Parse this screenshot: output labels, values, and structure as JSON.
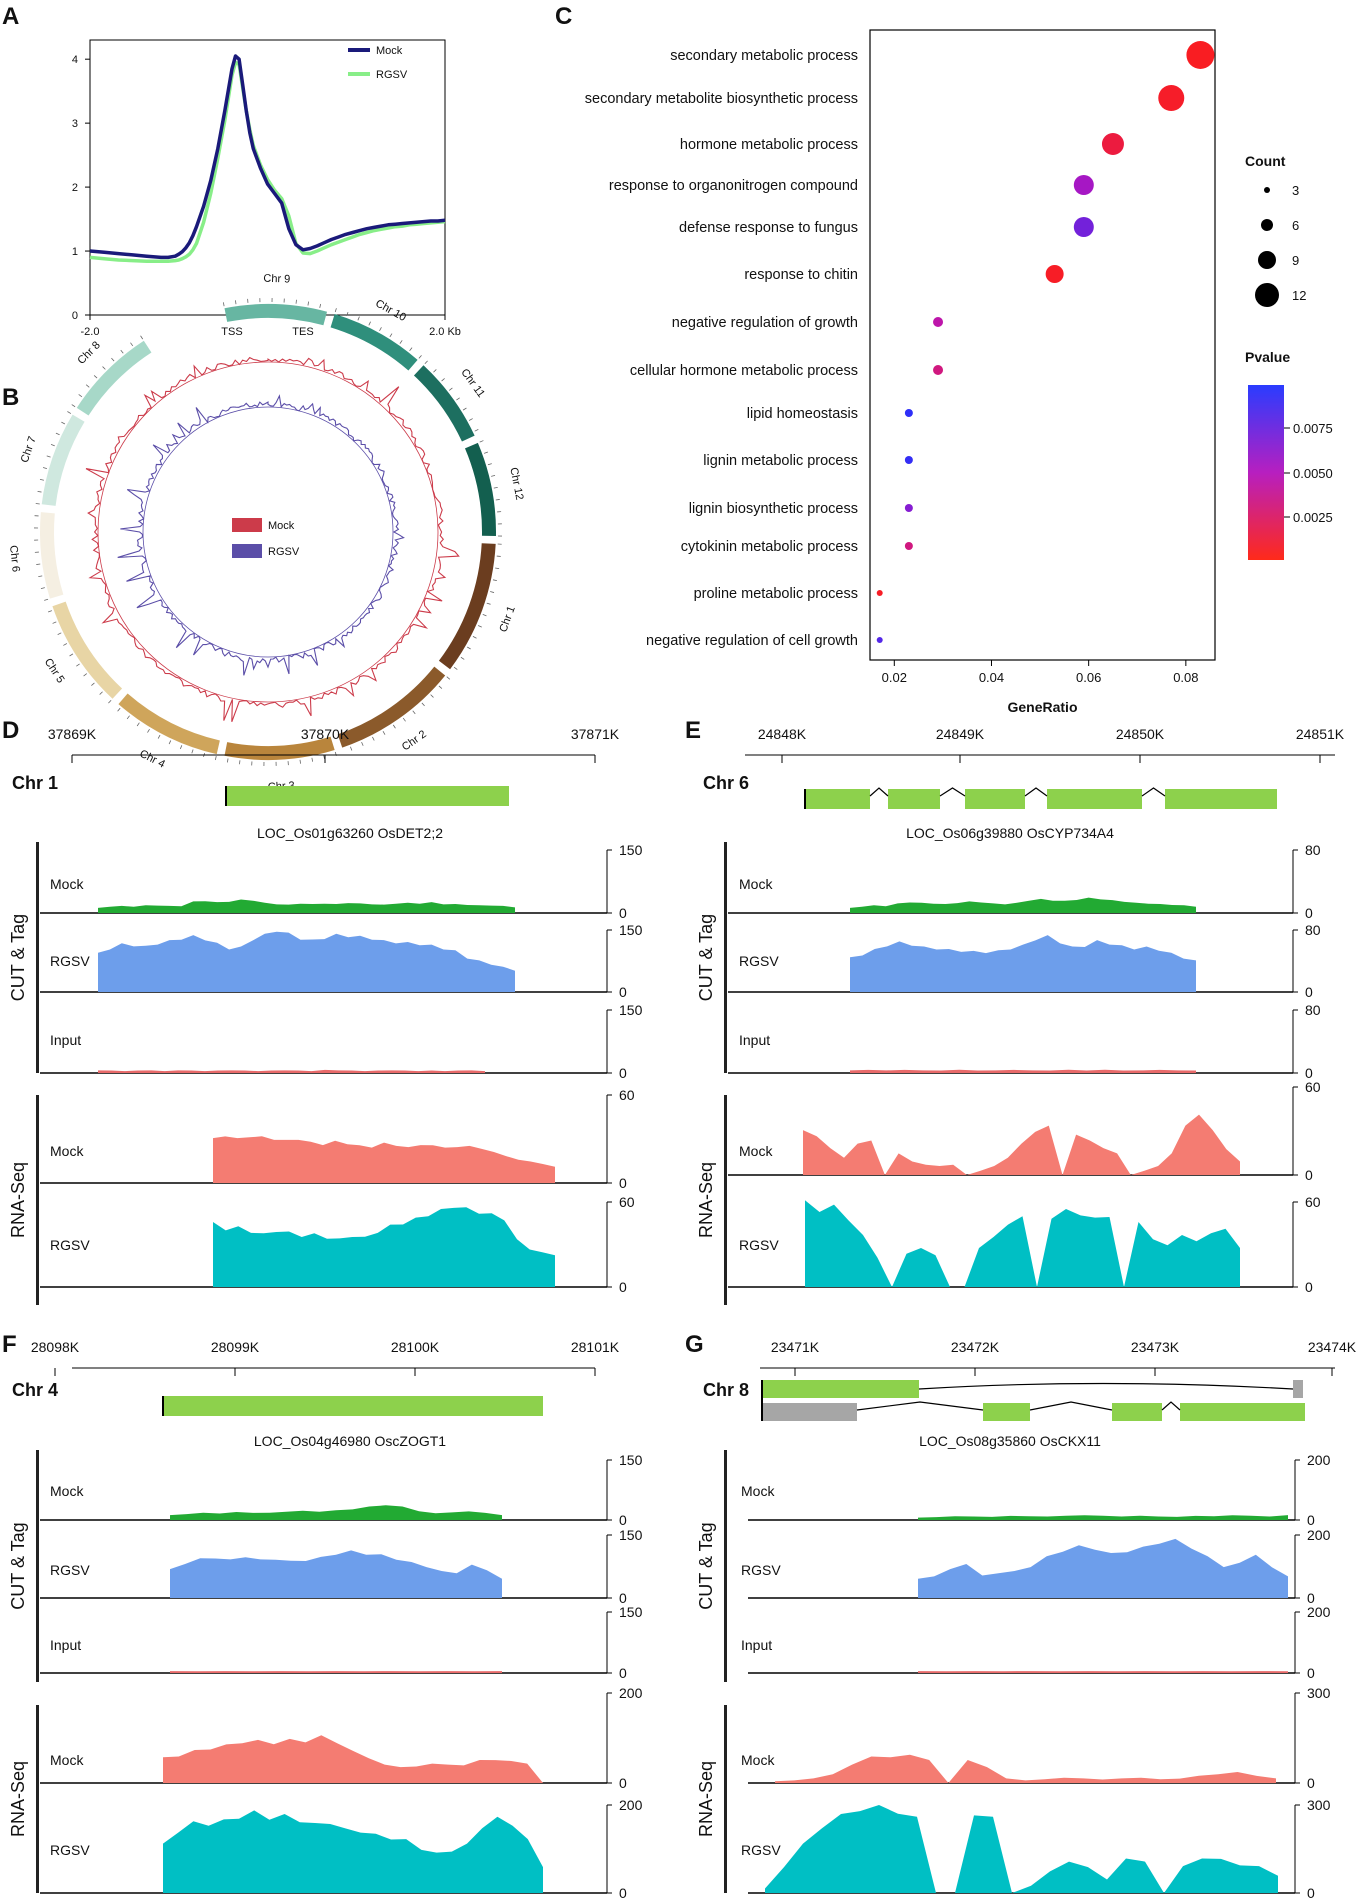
{
  "panels": {
    "A": "A",
    "B": "B",
    "C": "C",
    "D": "D",
    "E": "E",
    "F": "F",
    "G": "G"
  },
  "colors": {
    "mock_line": "#1a1a7a",
    "rgsv_line": "#88ee88",
    "ct_mock": "#22aa33",
    "ct_rgsv": "#6d9eeb",
    "ct_input": "#e86a6a",
    "rna_mock": "#f47c72",
    "rna_rgsv": "#00bfc4",
    "exon": "#8dd14c",
    "utr": "#a6a6a6",
    "circos_mock": "#cc3b4a",
    "circos_rgsv": "#5b4ea8"
  },
  "chart_data": [
    {
      "id": "A",
      "type": "line",
      "title": "",
      "xlabel": "",
      "ylabel": "",
      "x_ticks": [
        "-2.0",
        "TSS",
        "TES",
        "2.0 Kb"
      ],
      "y_ticks": [
        "0",
        "1",
        "2",
        "3",
        "4"
      ],
      "ylim": [
        0,
        4.3
      ],
      "legend": [
        "Mock",
        "RGSV"
      ],
      "series": [
        {
          "name": "Mock",
          "x": [
            0,
            4,
            8,
            12,
            16,
            20,
            22,
            24,
            25,
            26,
            27,
            28,
            29,
            30,
            32,
            34,
            36,
            38,
            40,
            41,
            42,
            43,
            44,
            45,
            46,
            48,
            50,
            52,
            54,
            56,
            58,
            60,
            62,
            64,
            66,
            68,
            70,
            72,
            74,
            76,
            78,
            80,
            82,
            84,
            86,
            88,
            90,
            92,
            94,
            96,
            98,
            100
          ],
          "values": [
            1.0,
            0.98,
            0.96,
            0.94,
            0.92,
            0.9,
            0.9,
            0.92,
            0.95,
            0.99,
            1.05,
            1.13,
            1.24,
            1.38,
            1.7,
            2.1,
            2.6,
            3.2,
            3.85,
            4.05,
            4.0,
            3.6,
            3.2,
            2.85,
            2.6,
            2.3,
            2.05,
            1.9,
            1.75,
            1.35,
            1.1,
            1.02,
            1.04,
            1.08,
            1.13,
            1.18,
            1.22,
            1.26,
            1.29,
            1.32,
            1.35,
            1.37,
            1.39,
            1.41,
            1.42,
            1.43,
            1.44,
            1.45,
            1.46,
            1.47,
            1.47,
            1.48
          ]
        },
        {
          "name": "RGSV",
          "x": [
            0,
            4,
            8,
            12,
            16,
            20,
            22,
            24,
            25,
            26,
            27,
            28,
            29,
            30,
            32,
            34,
            36,
            38,
            40,
            41,
            42,
            43,
            44,
            45,
            46,
            48,
            50,
            52,
            54,
            56,
            58,
            60,
            62,
            64,
            66,
            68,
            70,
            72,
            74,
            76,
            78,
            80,
            82,
            84,
            86,
            88,
            90,
            92,
            94,
            96,
            98,
            100
          ],
          "values": [
            0.9,
            0.88,
            0.86,
            0.85,
            0.84,
            0.84,
            0.84,
            0.85,
            0.86,
            0.88,
            0.91,
            0.95,
            1.02,
            1.12,
            1.45,
            1.9,
            2.45,
            3.05,
            3.75,
            3.95,
            3.92,
            3.55,
            3.2,
            2.9,
            2.65,
            2.35,
            2.12,
            1.95,
            1.82,
            1.55,
            1.12,
            0.97,
            0.96,
            1.0,
            1.05,
            1.1,
            1.14,
            1.18,
            1.22,
            1.26,
            1.29,
            1.32,
            1.34,
            1.36,
            1.38,
            1.39,
            1.41,
            1.42,
            1.43,
            1.44,
            1.45,
            1.46
          ]
        }
      ]
    },
    {
      "id": "B",
      "type": "circos",
      "chromosomes": [
        "Chr 1",
        "Chr 2",
        "Chr 3",
        "Chr 4",
        "Chr 5",
        "Chr 6",
        "Chr 7",
        "Chr 8",
        "Chr 9",
        "Chr 10",
        "Chr 11",
        "Chr 12"
      ],
      "legend": [
        "Mock",
        "RGSV"
      ]
    },
    {
      "id": "C",
      "type": "scatter",
      "title": "",
      "xlabel": "GeneRatio",
      "ylabel": "",
      "xlim": [
        0.015,
        0.086
      ],
      "x_ticks": [
        "0.02",
        "0.04",
        "0.06",
        "0.08"
      ],
      "categories": [
        "secondary metabolic process",
        "secondary metabolite biosynthetic process",
        "hormone metabolic process",
        "response to organonitrogen compound",
        "defense response to fungus",
        "response to chitin",
        "negative regulation of growth",
        "cellular hormone metabolic process",
        "lipid homeostasis",
        "lignin metabolic process",
        "lignin biosynthetic process",
        "cytokinin metabolic process",
        "proline metabolic process",
        "negative regulation of cell growth"
      ],
      "gene_ratio": [
        0.083,
        0.077,
        0.065,
        0.059,
        0.059,
        0.053,
        0.029,
        0.029,
        0.023,
        0.023,
        0.023,
        0.023,
        0.017,
        0.017
      ],
      "count": [
        14,
        13,
        11,
        10,
        10,
        9,
        5,
        5,
        4,
        4,
        4,
        4,
        3,
        3
      ],
      "pvalue": [
        0.0004,
        0.0006,
        0.0012,
        0.0052,
        0.0068,
        0.0005,
        0.0042,
        0.003,
        0.009,
        0.0088,
        0.0062,
        0.003,
        0.0005,
        0.0078
      ],
      "size_legend_title": "Count",
      "size_legend": [
        "3",
        "6",
        "9",
        "12"
      ],
      "color_legend_title": "Pvalue",
      "color_legend": [
        "0.0075",
        "0.0050",
        "0.0025"
      ]
    },
    {
      "id": "D",
      "type": "area",
      "chrom": "Chr 1",
      "gene": "LOC_Os01g63260  OsDET2;2",
      "coords": [
        "37869K",
        "37870K",
        "37871K"
      ],
      "group_labels": [
        "CUT & Tag",
        "RNA-Seq"
      ],
      "tracks": [
        {
          "label": "Mock",
          "max": "150",
          "zero": "0",
          "values": [
            0.08,
            0.1,
            0.11,
            0.1,
            0.12,
            0.12,
            0.11,
            0.11,
            0.18,
            0.19,
            0.17,
            0.18,
            0.21,
            0.2,
            0.16,
            0.14,
            0.13,
            0.15,
            0.14,
            0.15,
            0.14,
            0.16,
            0.15,
            0.14,
            0.13,
            0.15,
            0.16,
            0.15,
            0.17,
            0.14,
            0.14,
            0.13,
            0.12,
            0.12,
            0.11,
            0.09
          ]
        },
        {
          "label": "RGSV",
          "max": "150",
          "zero": "0",
          "values": [
            0.62,
            0.7,
            0.77,
            0.75,
            0.73,
            0.78,
            0.82,
            0.86,
            0.9,
            0.85,
            0.78,
            0.7,
            0.72,
            0.85,
            0.92,
            0.99,
            0.94,
            0.86,
            0.83,
            0.87,
            0.92,
            0.9,
            0.89,
            0.86,
            0.82,
            0.8,
            0.79,
            0.77,
            0.75,
            0.7,
            0.66,
            0.55,
            0.5,
            0.45,
            0.4,
            0.35
          ]
        },
        {
          "label": "Input",
          "max": "150",
          "zero": "0",
          "values": [
            0.04,
            0.04,
            0.03,
            0.04,
            0.04,
            0.03,
            0.04,
            0.04,
            0.03,
            0.04,
            0.04,
            0.04,
            0.03,
            0.04,
            0.04,
            0.04,
            0.03,
            0.05,
            0.04,
            0.04,
            0.03,
            0.04,
            0.04,
            0.04,
            0.03,
            0.04,
            0.03,
            0.04,
            0.04,
            0.03
          ]
        },
        {
          "label": "Mock",
          "max": "60",
          "zero": "0",
          "values": [
            0.5,
            0.54,
            0.5,
            0.53,
            0.52,
            0.5,
            0.48,
            0.5,
            0.46,
            0.44,
            0.47,
            0.45,
            0.42,
            0.41,
            0.45,
            0.43,
            0.4,
            0.44,
            0.42,
            0.41,
            0.4,
            0.43,
            0.38,
            0.36,
            0.3,
            0.27,
            0.24,
            0.22,
            0.18
          ]
        },
        {
          "label": "RGSV",
          "max": "60",
          "zero": "0",
          "values": [
            0.75,
            0.68,
            0.7,
            0.65,
            0.62,
            0.66,
            0.64,
            0.6,
            0.62,
            0.58,
            0.56,
            0.6,
            0.58,
            0.65,
            0.72,
            0.75,
            0.8,
            0.85,
            0.9,
            0.95,
            0.92,
            0.88,
            0.85,
            0.8,
            0.55,
            0.45,
            0.4,
            0.38
          ]
        }
      ]
    },
    {
      "id": "E",
      "type": "area",
      "chrom": "Chr 6",
      "gene": "LOC_Os06g39880  OsCYP734A4",
      "coords": [
        "24848K",
        "24849K",
        "24850K",
        "24851K"
      ],
      "group_labels": [
        "CUT & Tag",
        "RNA-Seq"
      ],
      "tracks": [
        {
          "label": "Mock",
          "max": "80",
          "zero": "0",
          "values": [
            0.08,
            0.1,
            0.12,
            0.11,
            0.15,
            0.17,
            0.16,
            0.15,
            0.14,
            0.16,
            0.18,
            0.17,
            0.15,
            0.14,
            0.16,
            0.2,
            0.22,
            0.2,
            0.19,
            0.21,
            0.24,
            0.22,
            0.2,
            0.18,
            0.16,
            0.15,
            0.14,
            0.13,
            0.12,
            0.1
          ]
        },
        {
          "label": "RGSV",
          "max": "80",
          "zero": "0",
          "values": [
            0.55,
            0.6,
            0.68,
            0.75,
            0.8,
            0.76,
            0.72,
            0.7,
            0.68,
            0.66,
            0.65,
            0.64,
            0.66,
            0.7,
            0.75,
            0.85,
            0.9,
            0.8,
            0.72,
            0.74,
            0.82,
            0.78,
            0.74,
            0.7,
            0.72,
            0.68,
            0.62,
            0.55,
            0.5
          ]
        },
        {
          "label": "Input",
          "max": "80",
          "zero": "0",
          "values": [
            0.04,
            0.05,
            0.04,
            0.05,
            0.04,
            0.04,
            0.05,
            0.04,
            0.04,
            0.05,
            0.04,
            0.04,
            0.05,
            0.04,
            0.05,
            0.04,
            0.04,
            0.05,
            0.04,
            0.04
          ]
        },
        {
          "label": "Mock",
          "max": "60",
          "zero": "0",
          "values": [
            0.5,
            0.45,
            0.3,
            0.2,
            0.35,
            0.4,
            0.0,
            0.25,
            0.15,
            0.12,
            0.1,
            0.12,
            0.0,
            0.05,
            0.1,
            0.2,
            0.35,
            0.5,
            0.55,
            0.0,
            0.45,
            0.4,
            0.3,
            0.25,
            0.0,
            0.05,
            0.1,
            0.25,
            0.55,
            0.7,
            0.5,
            0.3,
            0.15
          ]
        },
        {
          "label": "RGSV",
          "max": "60",
          "zero": "0",
          "values": [
            1.0,
            0.9,
            0.95,
            0.8,
            0.6,
            0.35,
            0.0,
            0.4,
            0.45,
            0.38,
            0.0,
            0.0,
            0.45,
            0.6,
            0.72,
            0.85,
            0.0,
            0.82,
            0.9,
            0.86,
            0.8,
            0.84,
            0.0,
            0.78,
            0.55,
            0.5,
            0.6,
            0.55,
            0.62,
            0.7,
            0.45
          ]
        }
      ]
    },
    {
      "id": "F",
      "type": "area",
      "chrom": "Chr 4",
      "gene": "LOC_Os04g46980  OscZOGT1",
      "coords": [
        "28098K",
        "28099K",
        "28100K",
        "28101K"
      ],
      "group_labels": [
        "CUT & Tag",
        "RNA-Seq"
      ],
      "tracks": [
        {
          "label": "Mock",
          "max": "150",
          "zero": "0",
          "values": [
            0.08,
            0.1,
            0.12,
            0.11,
            0.13,
            0.12,
            0.12,
            0.14,
            0.15,
            0.14,
            0.16,
            0.18,
            0.22,
            0.25,
            0.22,
            0.15,
            0.11,
            0.13,
            0.14,
            0.12,
            0.08
          ]
        },
        {
          "label": "RGSV",
          "max": "150",
          "zero": "0",
          "values": [
            0.45,
            0.55,
            0.62,
            0.64,
            0.6,
            0.66,
            0.6,
            0.62,
            0.58,
            0.6,
            0.64,
            0.7,
            0.74,
            0.7,
            0.68,
            0.62,
            0.56,
            0.5,
            0.42,
            0.4,
            0.52,
            0.45,
            0.3
          ]
        },
        {
          "label": "Input",
          "max": "150",
          "zero": "0",
          "values": [
            0.03,
            0.03,
            0.03,
            0.03,
            0.03,
            0.03,
            0.03,
            0.03,
            0.03,
            0.03,
            0.03,
            0.03,
            0.03
          ]
        },
        {
          "label": "Mock",
          "max": "200",
          "zero": "0",
          "values": [
            0.28,
            0.3,
            0.36,
            0.38,
            0.42,
            0.45,
            0.47,
            0.44,
            0.48,
            0.46,
            0.52,
            0.45,
            0.35,
            0.28,
            0.2,
            0.18,
            0.18,
            0.22,
            0.2,
            0.2,
            0.25,
            0.26,
            0.24,
            0.22,
            0.0
          ]
        },
        {
          "label": "RGSV",
          "max": "200",
          "zero": "0",
          "values": [
            0.55,
            0.7,
            0.8,
            0.78,
            0.82,
            0.86,
            0.92,
            0.85,
            0.88,
            0.82,
            0.78,
            0.8,
            0.72,
            0.7,
            0.66,
            0.62,
            0.6,
            0.5,
            0.45,
            0.48,
            0.55,
            0.75,
            0.85,
            0.78,
            0.6,
            0.3
          ]
        }
      ]
    },
    {
      "id": "G",
      "type": "area",
      "chrom": "Chr 8",
      "gene": "LOC_Os08g35860  OsCKX11",
      "coords": [
        "23471K",
        "23472K",
        "23473K",
        "23474K"
      ],
      "group_labels": [
        "CUT & Tag",
        "RNA-Seq"
      ],
      "tracks": [
        {
          "label": "Mock",
          "max": "200",
          "zero": "0",
          "values": [
            0.04,
            0.05,
            0.06,
            0.06,
            0.05,
            0.07,
            0.06,
            0.06,
            0.07,
            0.08,
            0.07,
            0.06,
            0.07,
            0.06,
            0.05,
            0.07,
            0.06,
            0.08,
            0.07,
            0.06,
            0.08
          ]
        },
        {
          "label": "RGSV",
          "max": "200",
          "zero": "0",
          "values": [
            0.3,
            0.35,
            0.45,
            0.55,
            0.35,
            0.4,
            0.42,
            0.5,
            0.65,
            0.75,
            0.82,
            0.78,
            0.7,
            0.74,
            0.8,
            0.88,
            0.92,
            0.8,
            0.65,
            0.5,
            0.55,
            0.7,
            0.48,
            0.35
          ]
        },
        {
          "label": "Input",
          "max": "200",
          "zero": "0",
          "values": [
            0.03,
            0.03,
            0.03,
            0.03,
            0.03,
            0.03,
            0.03,
            0.03,
            0.03,
            0.03,
            0.03,
            0.03,
            0.03,
            0.03
          ]
        },
        {
          "label": "Mock",
          "max": "300",
          "zero": "0",
          "values": [
            0.02,
            0.03,
            0.05,
            0.1,
            0.2,
            0.3,
            0.28,
            0.32,
            0.25,
            0.0,
            0.25,
            0.18,
            0.05,
            0.03,
            0.04,
            0.06,
            0.05,
            0.04,
            0.05,
            0.06,
            0.04,
            0.05,
            0.08,
            0.1,
            0.12,
            0.08,
            0.05
          ]
        },
        {
          "label": "RGSV",
          "max": "300",
          "zero": "0",
          "values": [
            0.05,
            0.3,
            0.55,
            0.75,
            0.88,
            0.95,
            0.98,
            0.92,
            0.85,
            0.0,
            0.0,
            0.9,
            0.85,
            0.0,
            0.08,
            0.25,
            0.35,
            0.3,
            0.15,
            0.4,
            0.35,
            0.0,
            0.3,
            0.4,
            0.38,
            0.32,
            0.3,
            0.2
          ]
        }
      ]
    }
  ]
}
